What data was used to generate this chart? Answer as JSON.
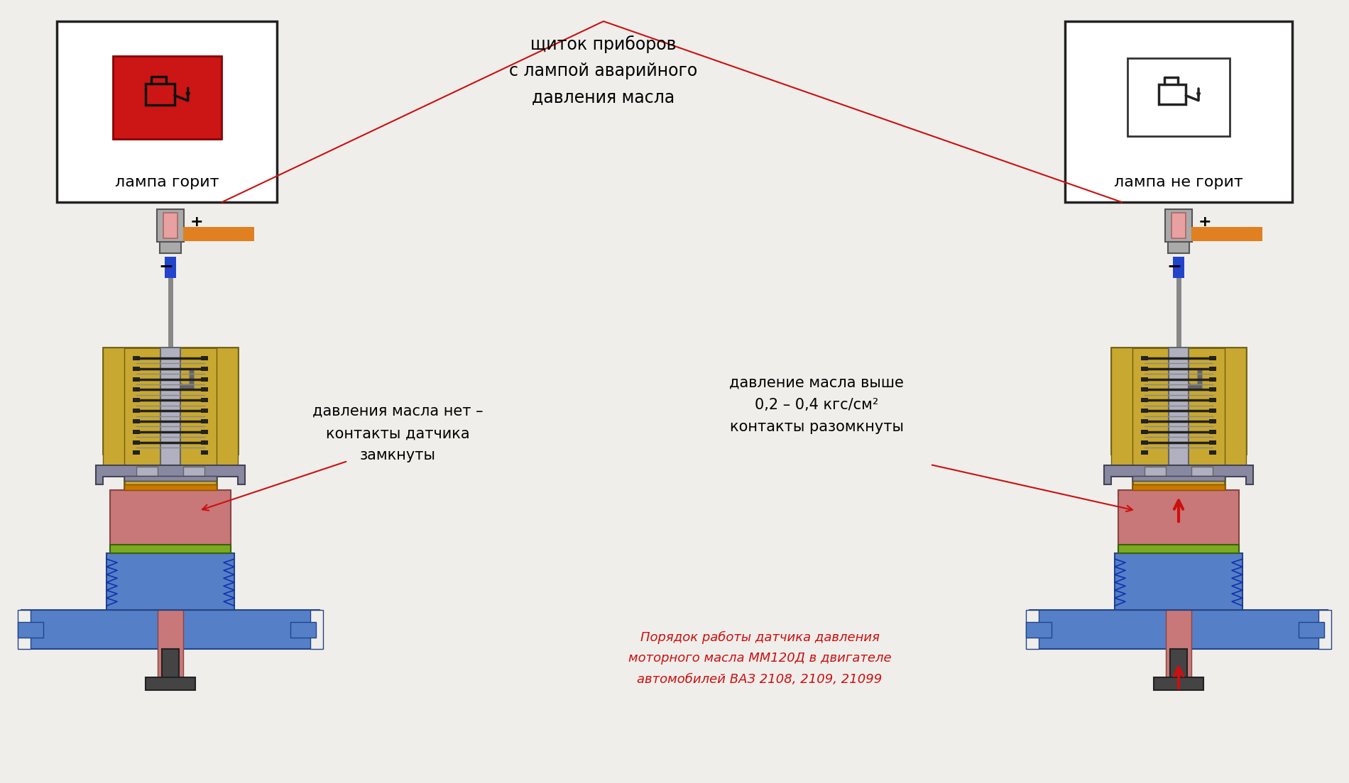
{
  "bg_color": "#f0eeeb",
  "title_text": "щиток приборов\nс лампой аварийного\nдавления масла",
  "left_label": "лампа горит",
  "right_label": "лампа не горит",
  "plus_sign": "+",
  "minus_sign": "−",
  "annotation_left": "давления масла нет –\nконтакты датчика\nзамкнуты",
  "annotation_right": "давление масла выше\n0,2 – 0,4 кгс/см²\nконтакты разомкнуты",
  "bottom_text": "Порядок работы датчика давления\nмоторного масла ММ120Д в двигателе\nавтомобилей ВАЗ 2108, 2109, 21099",
  "orange_color": "#E08020",
  "blue_color": "#5580C8",
  "red_color": "#CC1010",
  "gold_color": "#C8A830",
  "gray_color": "#8888A0",
  "dark_gray": "#606070",
  "silver": "#B0B0C0",
  "purple_gray": "#8888A0",
  "pink_color": "#C87878",
  "green_color": "#7AAA20",
  "white": "#FFFFFF",
  "black": "#111111"
}
